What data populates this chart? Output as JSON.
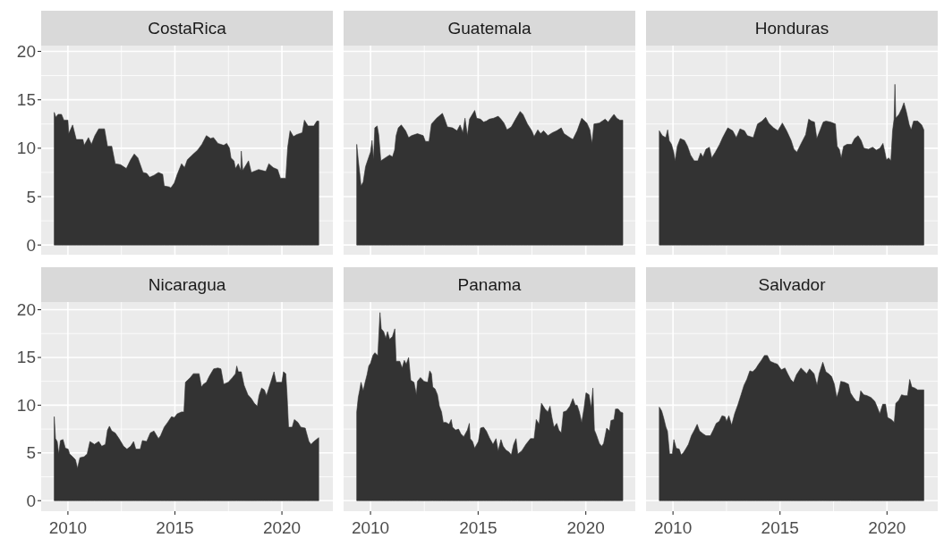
{
  "chart_data": [
    {
      "type": "area",
      "title": "CostaRica",
      "color": "#333333",
      "xlim": [
        2008.75,
        2022.38
      ],
      "ylim": [
        -1,
        20.6
      ],
      "xticks": [
        2010,
        2015,
        2020
      ],
      "yticks": [
        0,
        5,
        10,
        15,
        20
      ],
      "grid": true,
      "tick_labels": "y",
      "x": [
        2009.36,
        2009.44,
        2009.54,
        2009.7,
        2009.81,
        2010.0,
        2010.04,
        2010.22,
        2010.39,
        2010.7,
        2010.76,
        2010.96,
        2011.1,
        2011.26,
        2011.44,
        2011.71,
        2011.85,
        2012.05,
        2012.21,
        2012.46,
        2012.73,
        2012.93,
        2013.1,
        2013.27,
        2013.51,
        2013.68,
        2013.82,
        2014.02,
        2014.23,
        2014.43,
        2014.5,
        2014.74,
        2014.81,
        2014.97,
        2015.11,
        2015.31,
        2015.45,
        2015.58,
        2015.86,
        2016.06,
        2016.26,
        2016.47,
        2016.67,
        2016.8,
        2017.01,
        2017.28,
        2017.42,
        2017.55,
        2017.62,
        2017.76,
        2017.83,
        2017.96,
        2018.08,
        2018.1,
        2018.17,
        2018.44,
        2018.57,
        2018.91,
        2019.25,
        2019.39,
        2019.59,
        2019.8,
        2019.93,
        2020.18,
        2020.27,
        2020.38,
        2020.54,
        2020.68,
        2020.95,
        2021.05,
        2021.22,
        2021.49,
        2021.63,
        2021.72
      ],
      "values": [
        13.7,
        13.2,
        13.5,
        13.5,
        12.9,
        12.9,
        11.5,
        12.4,
        10.9,
        10.9,
        10.3,
        11.1,
        10.4,
        11.3,
        12.0,
        12.0,
        10.2,
        10.2,
        8.4,
        8.3,
        7.9,
        8.8,
        9.4,
        9.0,
        7.5,
        7.4,
        7.0,
        7.2,
        7.5,
        7.3,
        6.1,
        6.0,
        5.9,
        6.4,
        7.3,
        8.4,
        8.0,
        8.8,
        9.4,
        9.8,
        10.4,
        11.3,
        11.0,
        11.1,
        10.5,
        10.3,
        10.5,
        10.0,
        9.0,
        8.7,
        7.9,
        8.4,
        7.7,
        9.7,
        7.7,
        8.7,
        7.5,
        7.8,
        7.6,
        8.4,
        8.0,
        7.8,
        6.9,
        6.9,
        10.1,
        11.8,
        11.2,
        11.4,
        11.6,
        12.9,
        12.3,
        12.3,
        12.8,
        12.8
      ]
    },
    {
      "type": "area",
      "title": "Guatemala",
      "color": "#333333",
      "xlim": [
        2008.75,
        2022.3
      ],
      "ylim": [
        -1,
        20.6
      ],
      "xticks": [
        2010,
        2015,
        2020
      ],
      "yticks": [
        0,
        5,
        10,
        15,
        20
      ],
      "grid": true,
      "tick_labels": false,
      "x": [
        2009.36,
        2009.43,
        2009.5,
        2009.56,
        2009.66,
        2009.77,
        2009.86,
        2010.0,
        2010.07,
        2010.14,
        2010.2,
        2010.31,
        2010.38,
        2010.48,
        2010.68,
        2010.89,
        2011.02,
        2011.12,
        2011.19,
        2011.29,
        2011.43,
        2011.63,
        2011.77,
        2011.91,
        2012.18,
        2012.45,
        2012.55,
        2012.72,
        2012.83,
        2013.07,
        2013.34,
        2013.43,
        2013.57,
        2013.81,
        2014.02,
        2014.16,
        2014.29,
        2014.39,
        2014.5,
        2014.6,
        2014.84,
        2014.93,
        2015.11,
        2015.25,
        2015.38,
        2015.52,
        2015.72,
        2015.93,
        2016.06,
        2016.2,
        2016.34,
        2016.54,
        2016.74,
        2016.95,
        2017.08,
        2017.29,
        2017.49,
        2017.6,
        2017.77,
        2017.9,
        2018.04,
        2018.24,
        2018.45,
        2018.65,
        2018.86,
        2018.99,
        2019.26,
        2019.4,
        2019.6,
        2019.81,
        2020.05,
        2020.19,
        2020.29,
        2020.38,
        2020.63,
        2020.9,
        2021.04,
        2021.2,
        2021.31,
        2021.44,
        2021.58,
        2021.72
      ],
      "values": [
        10.4,
        8.8,
        7.4,
        6.1,
        6.5,
        8.1,
        8.7,
        9.6,
        10.8,
        8.8,
        12.1,
        12.3,
        11.4,
        8.7,
        9.0,
        9.3,
        9.1,
        9.8,
        11.3,
        12.1,
        12.4,
        11.8,
        11.1,
        11.3,
        11.5,
        11.3,
        10.7,
        10.7,
        12.5,
        13.1,
        13.6,
        13.1,
        12.2,
        12.1,
        11.8,
        12.4,
        11.6,
        13.1,
        11.3,
        13.0,
        13.9,
        13.1,
        13.0,
        12.7,
        12.8,
        13.0,
        13.1,
        13.3,
        13.0,
        12.6,
        11.9,
        12.2,
        13.0,
        13.8,
        13.5,
        12.5,
        11.8,
        11.2,
        11.9,
        11.5,
        11.8,
        11.3,
        11.6,
        11.8,
        12.1,
        11.5,
        11.1,
        10.9,
        11.8,
        13.1,
        12.6,
        11.9,
        10.5,
        12.5,
        12.6,
        13.0,
        12.7,
        13.2,
        13.5,
        13.1,
        12.9,
        12.9
      ]
    },
    {
      "type": "area",
      "title": "Honduras",
      "color": "#333333",
      "xlim": [
        2008.74,
        2022.37
      ],
      "ylim": [
        -1,
        20.6
      ],
      "xticks": [
        2010,
        2015,
        2020
      ],
      "yticks": [
        0,
        5,
        10,
        15,
        20
      ],
      "grid": true,
      "tick_labels": false,
      "x": [
        2009.36,
        2009.5,
        2009.66,
        2009.75,
        2009.82,
        2009.93,
        2010.03,
        2010.1,
        2010.2,
        2010.34,
        2010.54,
        2010.68,
        2010.82,
        2010.99,
        2011.16,
        2011.29,
        2011.4,
        2011.54,
        2011.7,
        2011.81,
        2011.98,
        2012.18,
        2012.32,
        2012.56,
        2012.79,
        2012.96,
        2013.13,
        2013.34,
        2013.47,
        2013.75,
        2013.95,
        2014.16,
        2014.33,
        2014.47,
        2014.7,
        2014.9,
        2015.11,
        2015.31,
        2015.52,
        2015.65,
        2015.79,
        2015.99,
        2016.2,
        2016.34,
        2016.47,
        2016.61,
        2016.72,
        2016.88,
        2017.02,
        2017.15,
        2017.36,
        2017.59,
        2017.67,
        2017.77,
        2017.86,
        2017.97,
        2018.13,
        2018.35,
        2018.49,
        2018.65,
        2018.79,
        2018.92,
        2019.13,
        2019.33,
        2019.5,
        2019.67,
        2019.81,
        2019.9,
        2019.97,
        2020.08,
        2020.18,
        2020.26,
        2020.33,
        2020.37,
        2020.41,
        2020.56,
        2020.69,
        2020.79,
        2020.9,
        2021.04,
        2021.13,
        2021.24,
        2021.44,
        2021.62,
        2021.72
      ],
      "values": [
        11.8,
        11.3,
        11.1,
        11.9,
        10.8,
        10.4,
        9.6,
        8.7,
        10.2,
        11.0,
        10.8,
        10.2,
        9.3,
        8.7,
        8.7,
        9.5,
        9.1,
        9.9,
        10.1,
        9.0,
        9.6,
        10.4,
        11.1,
        12.1,
        11.8,
        11.1,
        12.0,
        11.8,
        11.3,
        11.1,
        12.5,
        12.8,
        13.2,
        12.6,
        12.1,
        11.8,
        12.6,
        11.8,
        10.8,
        9.9,
        9.6,
        10.5,
        11.4,
        13.0,
        12.8,
        12.7,
        11.0,
        11.9,
        12.7,
        12.8,
        12.7,
        12.5,
        10.2,
        9.9,
        9.0,
        10.2,
        10.4,
        10.4,
        11.0,
        11.3,
        10.8,
        10.0,
        9.9,
        10.1,
        9.8,
        10.0,
        10.5,
        9.6,
        8.8,
        9.0,
        8.7,
        11.8,
        13.0,
        16.6,
        13.1,
        13.5,
        14.1,
        14.7,
        13.8,
        12.4,
        11.9,
        12.8,
        12.8,
        12.4,
        11.9
      ]
    },
    {
      "type": "area",
      "title": "Nicaragua",
      "color": "#333333",
      "xlim": [
        2008.75,
        2022.38
      ],
      "ylim": [
        -1.1,
        20.8
      ],
      "xticks": [
        2010,
        2015,
        2020
      ],
      "yticks": [
        0,
        5,
        10,
        15,
        20
      ],
      "grid": true,
      "x": [
        2009.36,
        2009.42,
        2009.5,
        2009.57,
        2009.65,
        2009.77,
        2009.88,
        2010.01,
        2010.08,
        2010.22,
        2010.35,
        2010.45,
        2010.56,
        2010.76,
        2010.9,
        2011.03,
        2011.24,
        2011.44,
        2011.58,
        2011.75,
        2011.85,
        2011.94,
        2012.05,
        2012.21,
        2012.39,
        2012.6,
        2012.76,
        2012.93,
        2013.07,
        2013.17,
        2013.38,
        2013.48,
        2013.68,
        2013.85,
        2014.02,
        2014.23,
        2014.33,
        2014.5,
        2014.66,
        2014.84,
        2014.97,
        2015.11,
        2015.31,
        2015.42,
        2015.49,
        2015.72,
        2015.86,
        2015.99,
        2016.13,
        2016.24,
        2016.33,
        2016.47,
        2016.6,
        2016.81,
        2017.01,
        2017.15,
        2017.28,
        2017.49,
        2017.69,
        2017.83,
        2017.89,
        2017.96,
        2018.1,
        2018.23,
        2018.41,
        2018.57,
        2018.71,
        2018.85,
        2018.93,
        2019.05,
        2019.18,
        2019.28,
        2019.39,
        2019.52,
        2019.63,
        2019.73,
        2020.0,
        2020.07,
        2020.18,
        2020.24,
        2020.31,
        2020.48,
        2020.58,
        2020.75,
        2020.88,
        2021.09,
        2021.15,
        2021.26,
        2021.36,
        2021.49,
        2021.72
      ],
      "values": [
        8.8,
        6.5,
        6.2,
        4.9,
        6.3,
        6.4,
        5.5,
        5.4,
        4.9,
        4.6,
        4.3,
        3.4,
        4.5,
        4.6,
        4.9,
        6.2,
        5.9,
        6.2,
        5.7,
        5.9,
        7.4,
        7.8,
        7.3,
        7.1,
        6.5,
        5.7,
        5.4,
        5.7,
        6.2,
        5.4,
        5.4,
        6.3,
        6.2,
        7.1,
        7.3,
        6.5,
        6.8,
        7.7,
        8.2,
        8.8,
        8.7,
        9.1,
        9.3,
        9.3,
        12.4,
        12.9,
        13.3,
        13.3,
        13.3,
        11.9,
        12.2,
        12.4,
        13.0,
        13.8,
        13.9,
        13.8,
        12.2,
        12.4,
        12.9,
        13.3,
        14.1,
        13.5,
        13.5,
        12.1,
        11.1,
        10.7,
        10.2,
        9.9,
        11.0,
        11.8,
        11.6,
        11.0,
        11.8,
        12.7,
        13.5,
        12.4,
        12.4,
        13.5,
        13.3,
        11.1,
        7.7,
        7.7,
        8.5,
        8.2,
        7.7,
        7.6,
        7.1,
        6.2,
        5.9,
        6.2,
        6.6
      ]
    },
    {
      "type": "area",
      "title": "Panama",
      "color": "#333333",
      "xlim": [
        2008.75,
        2022.3
      ],
      "ylim": [
        -1.1,
        20.8
      ],
      "xticks": [
        2010,
        2015,
        2020
      ],
      "yticks": [
        0,
        5,
        10,
        15,
        20
      ],
      "grid": true,
      "tick_labels": "x",
      "x": [
        2009.36,
        2009.43,
        2009.5,
        2009.56,
        2009.66,
        2009.75,
        2009.84,
        2009.92,
        2010.0,
        2010.11,
        2010.2,
        2010.34,
        2010.44,
        2010.5,
        2010.61,
        2010.71,
        2010.79,
        2010.89,
        2011.02,
        2011.13,
        2011.19,
        2011.36,
        2011.47,
        2011.57,
        2011.66,
        2011.77,
        2011.87,
        2012.02,
        2012.13,
        2012.18,
        2012.32,
        2012.49,
        2012.66,
        2012.75,
        2012.83,
        2012.89,
        2013.0,
        2013.11,
        2013.2,
        2013.3,
        2013.38,
        2013.51,
        2013.65,
        2013.75,
        2013.81,
        2013.95,
        2014.09,
        2014.2,
        2014.33,
        2014.5,
        2014.59,
        2014.63,
        2014.74,
        2014.84,
        2015.01,
        2015.11,
        2015.25,
        2015.38,
        2015.52,
        2015.69,
        2015.83,
        2015.93,
        2016.06,
        2016.16,
        2016.29,
        2016.43,
        2016.54,
        2016.65,
        2016.76,
        2016.84,
        2017.02,
        2017.22,
        2017.43,
        2017.6,
        2017.7,
        2017.83,
        2017.94,
        2018.11,
        2018.24,
        2018.34,
        2018.42,
        2018.52,
        2018.65,
        2018.75,
        2018.86,
        2018.96,
        2019.1,
        2019.26,
        2019.4,
        2019.51,
        2019.6,
        2019.7,
        2019.81,
        2019.92,
        2020.01,
        2020.15,
        2020.25,
        2020.33,
        2020.4,
        2020.49,
        2020.63,
        2020.74,
        2020.83,
        2020.97,
        2021.1,
        2021.17,
        2021.31,
        2021.38,
        2021.51,
        2021.61,
        2021.72
      ],
      "values": [
        9.3,
        10.8,
        11.6,
        12.4,
        11.5,
        12.4,
        13.2,
        14.1,
        14.4,
        15.2,
        15.5,
        15.2,
        19.7,
        18.0,
        17.7,
        17.0,
        17.7,
        16.9,
        17.2,
        18.0,
        14.6,
        14.6,
        13.9,
        14.7,
        14.3,
        15.0,
        12.6,
        12.4,
        11.1,
        12.5,
        12.9,
        12.5,
        12.4,
        13.6,
        13.3,
        11.9,
        11.7,
        11.1,
        9.9,
        9.3,
        8.2,
        8.2,
        8.0,
        8.5,
        7.7,
        7.4,
        7.5,
        7.0,
        6.7,
        7.4,
        8.1,
        6.5,
        6.2,
        5.5,
        6.2,
        7.6,
        7.7,
        7.3,
        6.6,
        5.9,
        6.5,
        5.2,
        6.4,
        5.7,
        5.3,
        5.1,
        4.8,
        5.9,
        6.5,
        4.9,
        5.2,
        5.9,
        6.5,
        6.5,
        8.5,
        8.0,
        10.2,
        9.6,
        9.3,
        9.9,
        8.8,
        7.7,
        8.1,
        7.4,
        7.1,
        9.3,
        9.4,
        9.9,
        10.7,
        10.0,
        10.0,
        9.3,
        8.2,
        9.7,
        11.3,
        11.1,
        9.7,
        11.8,
        7.4,
        6.9,
        6.0,
        5.7,
        6.0,
        7.6,
        7.3,
        8.4,
        8.5,
        9.6,
        9.6,
        9.3,
        9.2
      ]
    },
    {
      "type": "area",
      "title": "Salvador",
      "color": "#333333",
      "xlim": [
        2008.74,
        2022.37
      ],
      "ylim": [
        -1.1,
        20.8
      ],
      "xticks": [
        2010,
        2015,
        2020
      ],
      "yticks": [
        0,
        5,
        10,
        15,
        20
      ],
      "grid": true,
      "tick_labels": "x",
      "x": [
        2009.36,
        2009.47,
        2009.56,
        2009.67,
        2009.74,
        2009.84,
        2009.97,
        2010.04,
        2010.15,
        2010.29,
        2010.38,
        2010.48,
        2010.59,
        2010.72,
        2010.86,
        2011.0,
        2011.13,
        2011.24,
        2011.41,
        2011.54,
        2011.75,
        2011.88,
        2012.02,
        2012.16,
        2012.29,
        2012.43,
        2012.5,
        2012.61,
        2012.74,
        2012.88,
        2013.04,
        2013.18,
        2013.32,
        2013.45,
        2013.59,
        2013.72,
        2013.86,
        2014.0,
        2014.13,
        2014.27,
        2014.41,
        2014.54,
        2014.75,
        2014.88,
        2015.06,
        2015.23,
        2015.36,
        2015.5,
        2015.63,
        2015.77,
        2015.98,
        2016.11,
        2016.25,
        2016.38,
        2016.59,
        2016.73,
        2016.83,
        2017.0,
        2017.14,
        2017.27,
        2017.41,
        2017.54,
        2017.65,
        2017.75,
        2017.84,
        2018.02,
        2018.2,
        2018.29,
        2018.43,
        2018.57,
        2018.7,
        2018.77,
        2018.91,
        2019.07,
        2019.25,
        2019.43,
        2019.56,
        2019.66,
        2019.8,
        2019.93,
        2020.03,
        2020.2,
        2020.34,
        2020.41,
        2020.55,
        2020.68,
        2020.82,
        2020.96,
        2021.06,
        2021.16,
        2021.3,
        2021.43,
        2021.72
      ],
      "values": [
        9.8,
        9.4,
        8.7,
        7.7,
        7.3,
        4.9,
        4.9,
        6.4,
        5.5,
        5.4,
        4.8,
        5.0,
        5.4,
        5.9,
        6.8,
        7.4,
        8.0,
        7.3,
        7.0,
        6.8,
        6.8,
        7.4,
        8.1,
        8.3,
        8.9,
        8.8,
        8.3,
        8.9,
        7.9,
        9.1,
        10.1,
        11.1,
        12.1,
        12.7,
        13.6,
        13.5,
        13.8,
        14.3,
        14.7,
        15.2,
        15.2,
        14.6,
        14.4,
        14.3,
        13.7,
        13.9,
        13.3,
        12.7,
        12.4,
        13.2,
        13.9,
        13.6,
        13.3,
        13.8,
        13.3,
        12.1,
        13.3,
        14.5,
        13.5,
        13.3,
        13.0,
        12.2,
        10.8,
        11.5,
        12.5,
        12.4,
        12.2,
        11.3,
        10.8,
        10.4,
        10.4,
        11.5,
        11.1,
        11.0,
        10.8,
        10.4,
        9.7,
        9.1,
        10.1,
        10.1,
        8.7,
        8.5,
        8.2,
        10.2,
        10.5,
        11.1,
        11.0,
        11.0,
        12.7,
        11.9,
        11.8,
        11.6,
        11.6
      ]
    }
  ]
}
